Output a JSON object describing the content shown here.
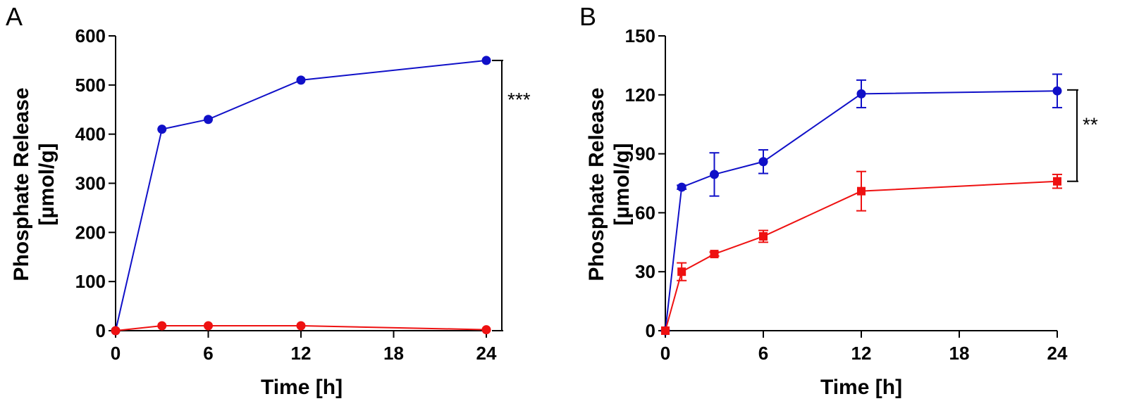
{
  "chart_data": [
    {
      "type": "line",
      "panel_label": "A",
      "xlabel": "Time [h]",
      "ylabel_line1": "Phosphate Release",
      "ylabel_line2": "[µmol/g]",
      "xlim": [
        0,
        24
      ],
      "ylim": [
        0,
        600
      ],
      "xticks": [
        0,
        6,
        12,
        18,
        24
      ],
      "yticks": [
        0,
        100,
        200,
        300,
        400,
        500,
        600
      ],
      "grid": false,
      "series": [
        {
          "color": "#1010c8",
          "marker": "circle",
          "x": [
            0,
            3,
            6,
            12,
            24
          ],
          "y": [
            0,
            410,
            430,
            510,
            550
          ]
        },
        {
          "color": "#ee1111",
          "marker": "circle",
          "x": [
            0,
            3,
            6,
            12,
            24
          ],
          "y": [
            0,
            10,
            10,
            10,
            2
          ]
        }
      ],
      "significance": {
        "text": "***",
        "y_from": 0,
        "y_to": 550
      }
    },
    {
      "type": "line",
      "panel_label": "B",
      "xlabel": "Time [h]",
      "ylabel_line1": "Phosphate Release",
      "ylabel_line2": "[µmol/g]",
      "xlim": [
        0,
        24
      ],
      "ylim": [
        0,
        150
      ],
      "xticks": [
        0,
        6,
        12,
        18,
        24
      ],
      "yticks": [
        0,
        30,
        60,
        90,
        120,
        150
      ],
      "grid": false,
      "series": [
        {
          "color": "#1010c8",
          "marker": "circle",
          "x": [
            0,
            1,
            3,
            6,
            12,
            24
          ],
          "y": [
            0,
            73,
            79.5,
            86,
            120.5,
            122
          ],
          "err": [
            0,
            1,
            11,
            6,
            7,
            8.5
          ]
        },
        {
          "color": "#ee1111",
          "marker": "square",
          "x": [
            0,
            1,
            3,
            6,
            12,
            24
          ],
          "y": [
            0,
            30,
            39,
            48,
            71,
            76
          ],
          "err": [
            0,
            4.5,
            1,
            3,
            10,
            3.5
          ]
        }
      ],
      "significance": {
        "text": "**",
        "y_from": 76,
        "y_to": 122.5
      }
    }
  ]
}
